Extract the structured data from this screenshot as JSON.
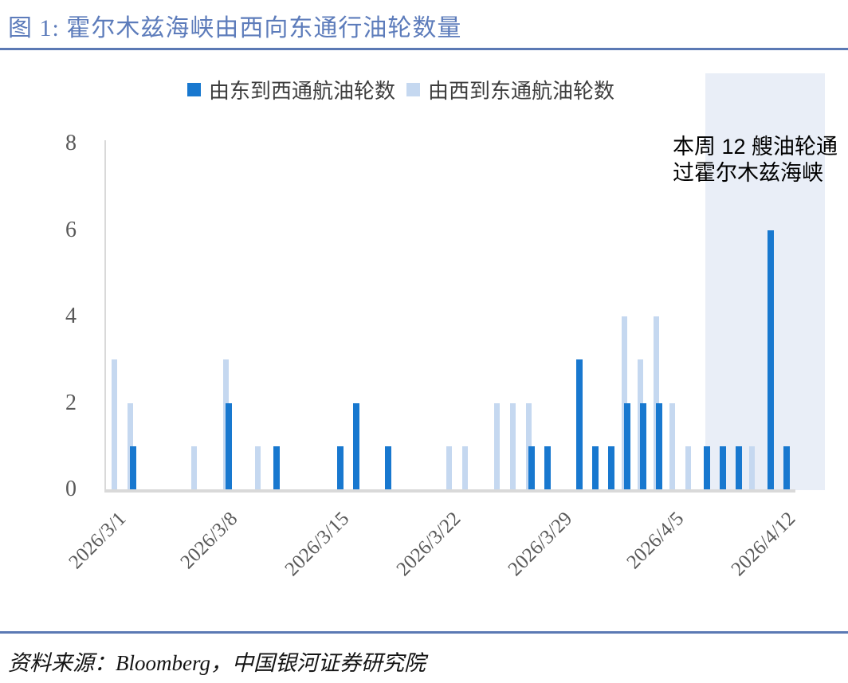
{
  "figure": {
    "title": "图 1:  霍尔木兹海峡由西向东通行油轮数量",
    "source": "资料来源：Bloomberg，中国银河证券研究院",
    "annotation": {
      "line1": "本周 12 艘油轮通",
      "line2": "过霍尔木兹海峡"
    }
  },
  "colors": {
    "accent_rule": "#5b79b4",
    "title_text": "#5d7cbb",
    "axis_line": "#d9d9d9",
    "tick_text": "#595959",
    "highlight_band": "#e9eef7",
    "series_dark": "#1878cf",
    "series_light": "#c5d8f0"
  },
  "chart_data": {
    "type": "bar",
    "title": "霍尔木兹海峡由西向东通行油轮数量",
    "xlabel": "",
    "ylabel": "",
    "ylim": [
      0,
      8
    ],
    "y_ticks": [
      0,
      2,
      4,
      6,
      8
    ],
    "grid": false,
    "legend_position": "top",
    "x_tick_labels": [
      "2026/3/1",
      "2026/3/8",
      "2026/3/15",
      "2026/3/22",
      "2026/3/29",
      "2026/4/5",
      "2026/4/12"
    ],
    "dates": [
      "2026/3/1",
      "2026/3/2",
      "2026/3/3",
      "2026/3/4",
      "2026/3/5",
      "2026/3/6",
      "2026/3/7",
      "2026/3/8",
      "2026/3/9",
      "2026/3/10",
      "2026/3/11",
      "2026/3/12",
      "2026/3/13",
      "2026/3/14",
      "2026/3/15",
      "2026/3/16",
      "2026/3/17",
      "2026/3/18",
      "2026/3/19",
      "2026/3/20",
      "2026/3/21",
      "2026/3/22",
      "2026/3/23",
      "2026/3/24",
      "2026/3/25",
      "2026/3/26",
      "2026/3/27",
      "2026/3/28",
      "2026/3/29",
      "2026/3/30",
      "2026/3/31",
      "2026/4/1",
      "2026/4/2",
      "2026/4/3",
      "2026/4/4",
      "2026/4/5",
      "2026/4/6",
      "2026/4/7",
      "2026/4/8",
      "2026/4/9",
      "2026/4/10",
      "2026/4/11",
      "2026/4/12"
    ],
    "series": [
      {
        "name": "由东到西通航油轮数",
        "color": "#1878cf",
        "values": [
          0,
          1,
          0,
          0,
          0,
          0,
          0,
          2,
          0,
          0,
          1,
          0,
          0,
          0,
          1,
          2,
          0,
          1,
          0,
          0,
          0,
          0,
          0,
          0,
          0,
          0,
          1,
          1,
          0,
          3,
          1,
          1,
          2,
          2,
          2,
          0,
          0,
          1,
          1,
          1,
          0,
          6,
          1
        ]
      },
      {
        "name": "由西到东通航油轮数",
        "color": "#c5d8f0",
        "values": [
          3,
          2,
          0,
          0,
          0,
          1,
          0,
          3,
          0,
          1,
          0,
          0,
          0,
          0,
          0,
          0,
          0,
          0,
          0,
          0,
          0,
          1,
          1,
          0,
          2,
          2,
          2,
          0,
          0,
          0,
          0,
          0,
          4,
          3,
          4,
          2,
          1,
          0,
          0,
          0,
          1,
          0,
          0
        ]
      }
    ],
    "highlight_band": {
      "start_date": "2026/4/7",
      "start_index": 37,
      "note": "本周 12 艘油轮通过霍尔木兹海峡"
    }
  }
}
